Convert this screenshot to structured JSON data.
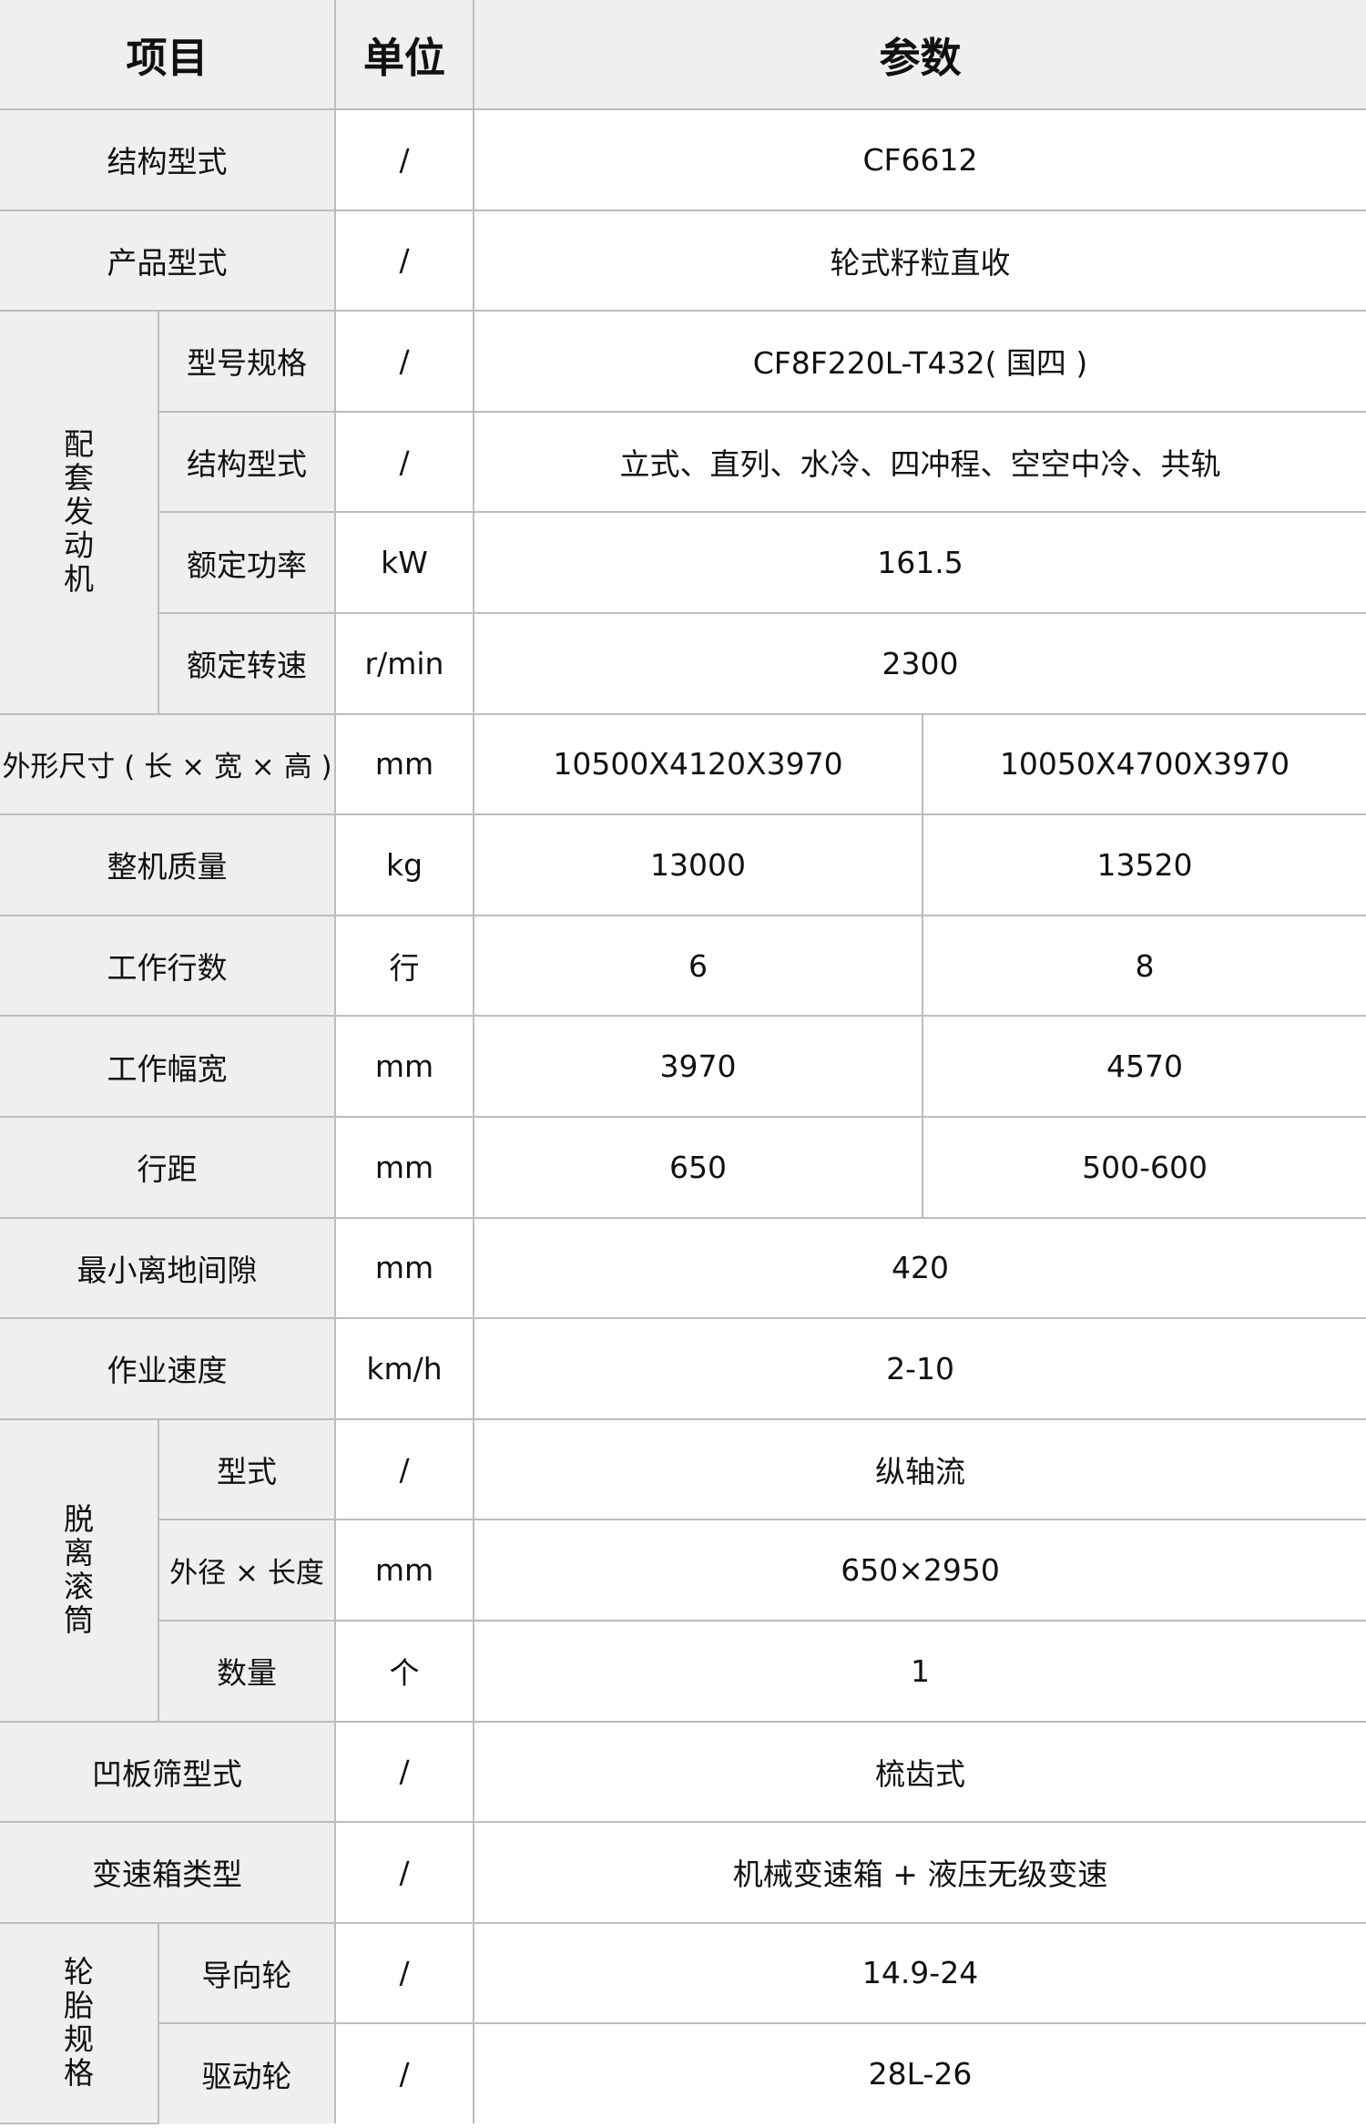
{
  "header": {
    "item": "项目",
    "unit": "单位",
    "params": "参数"
  },
  "rows": {
    "structure": {
      "label": "结构型式",
      "unit": "/",
      "value": "CF6612"
    },
    "product": {
      "label": "产品型式",
      "unit": "/",
      "value": "轮式籽粒直收"
    },
    "engine": {
      "group": "配套发动机",
      "model": {
        "label": "型号规格",
        "unit": "/",
        "value": "CF8F220L-T432( 国四 )"
      },
      "structure": {
        "label": "结构型式",
        "unit": "/",
        "value": "立式、直列、水冷、四冲程、空空中冷、共轨"
      },
      "power": {
        "label": "额定功率",
        "unit": "kW",
        "value": "161.5"
      },
      "speed": {
        "label": "额定转速",
        "unit": "r/min",
        "value": "2300"
      }
    },
    "dimensions": {
      "label": "外形尺寸 ( 长 × 宽 × 高 )",
      "unit": "mm",
      "value_a": "10500X4120X3970",
      "value_b": "10050X4700X3970"
    },
    "mass": {
      "label": "整机质量",
      "unit": "kg",
      "value_a": "13000",
      "value_b": "13520"
    },
    "rows_count": {
      "label": "工作行数",
      "unit": "行",
      "value_a": "6",
      "value_b": "8"
    },
    "width": {
      "label": "工作幅宽",
      "unit": "mm",
      "value_a": "3970",
      "value_b": "4570"
    },
    "spacing": {
      "label": "行距",
      "unit": "mm",
      "value_a": "650",
      "value_b": "500-600"
    },
    "clearance": {
      "label": "最小离地间隙",
      "unit": "mm",
      "value": "420"
    },
    "work_speed": {
      "label": "作业速度",
      "unit": "km/h",
      "value": "2-10"
    },
    "drum": {
      "group": "脱离滚筒",
      "type": {
        "label": "型式",
        "unit": "/",
        "value": "纵轴流"
      },
      "size": {
        "label": "外径 × 长度",
        "unit": "mm",
        "value": "650×2950"
      },
      "count": {
        "label": "数量",
        "unit": "个",
        "value": "1"
      }
    },
    "concave": {
      "label": "凹板筛型式",
      "unit": "/",
      "value": "梳齿式"
    },
    "gearbox": {
      "label": "变速箱类型",
      "unit": "/",
      "value": "机械变速箱 + 液压无级变速"
    },
    "tires": {
      "group": "轮胎规格",
      "guide": {
        "label": "导向轮",
        "unit": "/",
        "value": "14.9-24"
      },
      "drive": {
        "label": "驱动轮",
        "unit": "/",
        "value": "28L-26"
      }
    }
  }
}
